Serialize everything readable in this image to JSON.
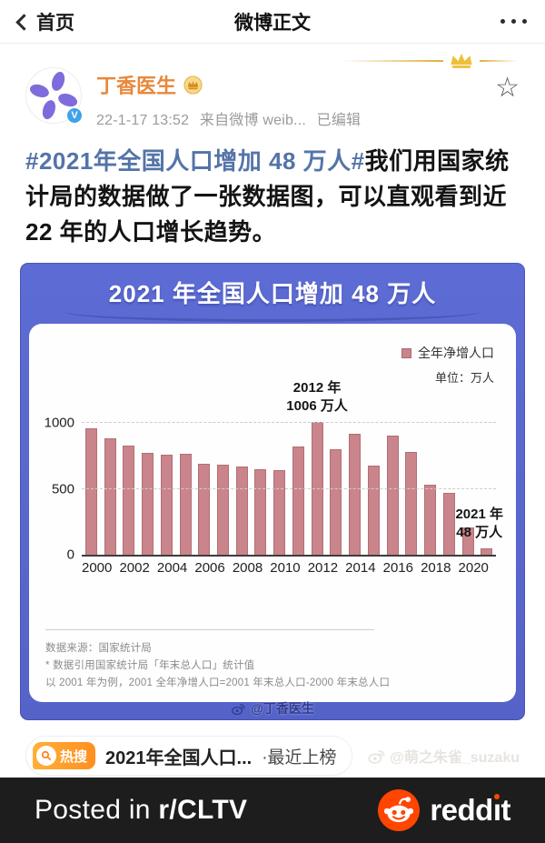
{
  "nav": {
    "back": "首页",
    "title": "微博正文"
  },
  "post": {
    "author": "丁香医生",
    "verified_badge": "V",
    "time": "22-1-17 13:52",
    "source": "来自微博 weib...",
    "edited": "已编辑",
    "hashtag": "#2021年全国人口增加 48 万人#",
    "body": "我们用国家统计局的数据做了一张数据图，可以直观看到近 22 年的人口增长趋势。"
  },
  "chart_card": {
    "title": "2021 年全国人口增加 48 万人",
    "legend": "全年净增人口",
    "unit": "单位：万人",
    "source": "数据来源：国家统计局",
    "note1": "* 数据引用国家统计局「年末总人口」统计值",
    "note2": "以 2001 年为例，2001 全年净增人口=2001 年末总人口-2000 年末总人口",
    "watermark": "@丁香医生"
  },
  "chart_data": {
    "type": "bar",
    "title": "2021 年全国人口增加 48 万人",
    "series_name": "全年净增人口",
    "ylabel": "万人",
    "categories": [
      "2000",
      "2001",
      "2002",
      "2003",
      "2004",
      "2005",
      "2006",
      "2007",
      "2008",
      "2009",
      "2010",
      "2011",
      "2012",
      "2013",
      "2014",
      "2015",
      "2016",
      "2017",
      "2018",
      "2019",
      "2020",
      "2021"
    ],
    "values": [
      957,
      884,
      826,
      774,
      761,
      768,
      692,
      681,
      673,
      648,
      641,
      825,
      1006,
      804,
      920,
      680,
      906,
      779,
      530,
      467,
      204,
      48
    ],
    "yticks": [
      0,
      500,
      1000
    ],
    "ylim": [
      0,
      1050
    ],
    "x_tick_labels": [
      "2000",
      "2002",
      "2004",
      "2006",
      "2008",
      "2010",
      "2012",
      "2014",
      "2016",
      "2018",
      "2020"
    ],
    "grid": "horizontal-dashed",
    "legend_position": "top-right",
    "bar_color": "#c9858b",
    "annotations": [
      {
        "category": "2012",
        "lines": [
          "2012 年",
          "1006 万人"
        ]
      },
      {
        "category": "2021",
        "lines": [
          "2021 年",
          "48 万人"
        ]
      }
    ]
  },
  "hot_search": {
    "badge": "热搜",
    "topic": "2021年全国人口...",
    "status": "·最近上榜"
  },
  "watermark_user": "@萌之朱雀_suzaku",
  "reddit_bar": {
    "prefix": "Posted in ",
    "subreddit": "r/CLTV",
    "brand_head": "redd",
    "brand_i": "ı",
    "brand_tail": "t"
  },
  "colors": {
    "accent_blue": "#5a69cf",
    "bar": "#c9858b",
    "hashtag": "#5474a8",
    "username_orange": "#e8883a",
    "reddit_orange": "#ff4500"
  }
}
